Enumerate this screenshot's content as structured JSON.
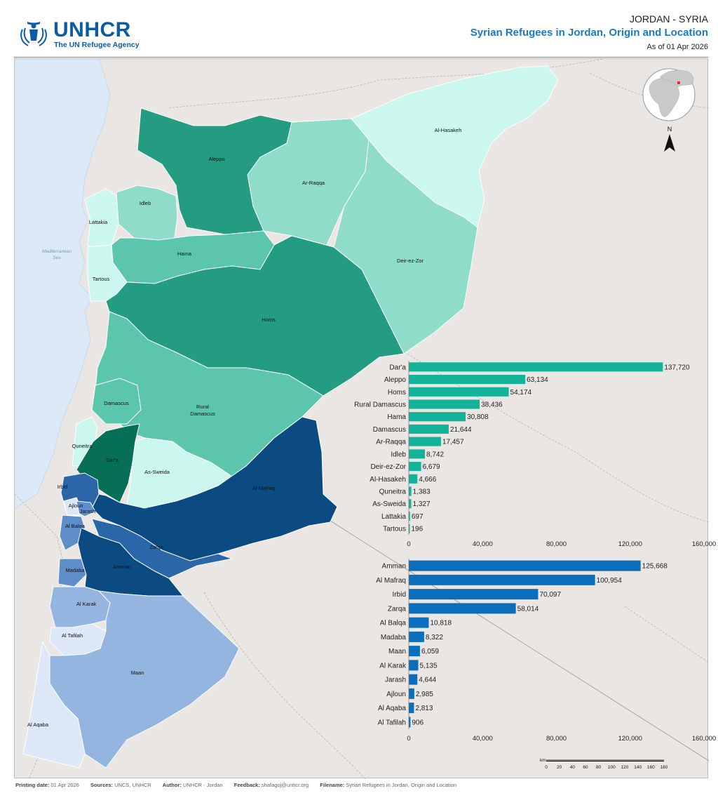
{
  "header": {
    "org_name": "UNHCR",
    "org_subtitle": "The UN Refugee Agency",
    "country": "JORDAN - SYRIA",
    "title": "Syrian Refugees in Jordan, Origin and Location",
    "date": "As of 01 Apr 2026"
  },
  "map": {
    "sea_label_1": "Mediterranean",
    "sea_label_2": "Sea",
    "north_label": "N",
    "syria_governorates": [
      {
        "name": "Al-Hasakeh"
      },
      {
        "name": "Aleppo"
      },
      {
        "name": "Ar-Raqqa"
      },
      {
        "name": "Idleb"
      },
      {
        "name": "Lattakia"
      },
      {
        "name": "Hama"
      },
      {
        "name": "Deir-ez-Zor"
      },
      {
        "name": "Tartous"
      },
      {
        "name": "Homs"
      },
      {
        "name": "Damascus"
      },
      {
        "name": "Rural"
      },
      {
        "name": "Damascus"
      },
      {
        "name": "Quneitra"
      },
      {
        "name": "Dar'a"
      },
      {
        "name": "As-Sweida"
      }
    ],
    "jordan_governorates": [
      {
        "name": "Al Mafraq"
      },
      {
        "name": "Irbid"
      },
      {
        "name": "Ajloun"
      },
      {
        "name": "Jarash"
      },
      {
        "name": "Al Balqa"
      },
      {
        "name": "Zarqa"
      },
      {
        "name": "Madaba"
      },
      {
        "name": "Amman"
      },
      {
        "name": "Al Karak"
      },
      {
        "name": "Al Tafilah"
      },
      {
        "name": "Maan"
      },
      {
        "name": "Al Aqaba"
      }
    ],
    "colors": {
      "land": "#e9e6e3",
      "sea": "#dce9f6",
      "syria_1": "#ccf7ee",
      "syria_2": "#8fdcc8",
      "syria_3": "#5cc6ac",
      "syria_4": "#249c82",
      "syria_5": "#076e58",
      "jordan_1": "#dce8f8",
      "jordan_2": "#93b5e0",
      "jordan_3": "#5d8ec9",
      "jordan_4": "#2a66a8",
      "jordan_5": "#0c4a82"
    },
    "scale": {
      "unit": "km",
      "ticks": [
        "0",
        "20",
        "40",
        "60",
        "80",
        "100",
        "120",
        "140",
        "160",
        "180"
      ]
    }
  },
  "chart_data": [
    {
      "type": "bar",
      "orientation": "horizontal",
      "categories": [
        "Dar'a",
        "Aleppo",
        "Homs",
        "Rural Damascus",
        "Hama",
        "Damascus",
        "Ar-Raqqa",
        "Idleb",
        "Deir-ez-Zor",
        "Al-Hasakeh",
        "Quneitra",
        "As-Sweida",
        "Lattakia",
        "Tartous"
      ],
      "values": [
        137720,
        63134,
        54174,
        38436,
        30808,
        21644,
        17457,
        8742,
        6679,
        4666,
        1383,
        1327,
        697,
        196
      ],
      "value_labels": [
        "137,720",
        "63,134",
        "54,174",
        "38,436",
        "30,808",
        "21,644",
        "17,457",
        "8,742",
        "6,679",
        "4,666",
        "1,383",
        "1,327",
        "697",
        "196"
      ],
      "xlim": [
        0,
        160000
      ],
      "ticks": [
        0,
        40000,
        80000,
        120000,
        160000
      ],
      "tick_labels": [
        "0",
        "40,000",
        "80,000",
        "120,000",
        "160,000"
      ],
      "color": "#13b39a",
      "grid": false
    },
    {
      "type": "bar",
      "orientation": "horizontal",
      "categories": [
        "Amman",
        "Al Mafraq",
        "Irbid",
        "Zarqa",
        "Al Balqa",
        "Madaba",
        "Maan",
        "Al Karak",
        "Jarash",
        "Ajloun",
        "Al Aqaba",
        "Al Tafilah"
      ],
      "values": [
        125668,
        100954,
        70097,
        58014,
        10818,
        8322,
        6059,
        5135,
        4644,
        2985,
        2813,
        906
      ],
      "value_labels": [
        "125,668",
        "100,954",
        "70,097",
        "58,014",
        "10,818",
        "8,322",
        "6,059",
        "5,135",
        "4,644",
        "2,985",
        "2,813",
        "906"
      ],
      "xlim": [
        0,
        160000
      ],
      "ticks": [
        0,
        40000,
        80000,
        120000,
        160000
      ],
      "tick_labels": [
        "0",
        "40,000",
        "80,000",
        "120,000",
        "160,000"
      ],
      "color": "#0a6ebd",
      "grid": false
    }
  ],
  "footer": {
    "printing_label": "Printing date:",
    "printing_value": "01 Apr 2026",
    "sources_label": "Sources:",
    "sources_value": "UNCS, UNHCR",
    "author_label": "Author:",
    "author_value": "UNHCR - Jordan",
    "feedback_label": "Feedback:",
    "feedback_value": "shafagoj@unhcr.org",
    "filename_label": "Filename:",
    "filename_value": "Syrian Refugees in Jordan, Origin and Location"
  }
}
